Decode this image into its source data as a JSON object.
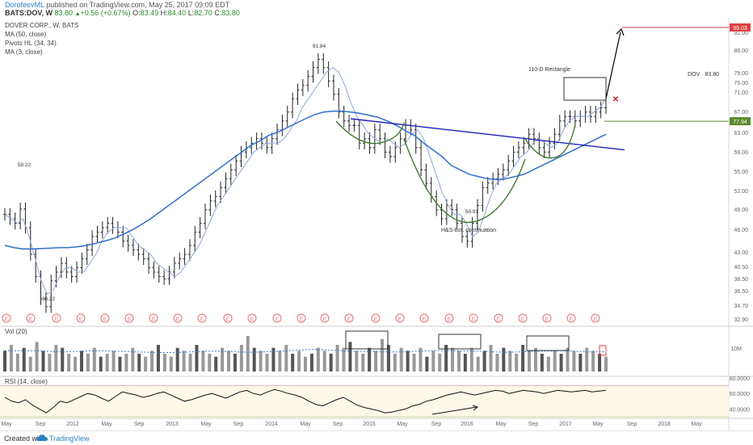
{
  "header": {
    "publisher": "DorofeevML",
    "published_text": " published on TradingView.com, May 25, 2017 09:09 EDT",
    "ticker": "BATS:DOV, W",
    "last": "83.80",
    "arrow": "▲",
    "change": "+0.56 (+0.67%)",
    "ohlc": [
      {
        "label": "O:",
        "value": "83.49"
      },
      {
        "label": "H:",
        "value": "84.40"
      },
      {
        "label": "L:",
        "value": "82.70"
      },
      {
        "label": "C:",
        "value": "83.80"
      }
    ]
  },
  "legend": [
    "DOVER CORP., W, BATS",
    "MA (50, close)",
    "Pivots HL (34, 34)",
    "MA (3, close)"
  ],
  "price_tag": "DOV · 83.80",
  "colors": {
    "price": "#222222",
    "ma50": "#2f6fd0",
    "ma3": "#8fa8d8",
    "neckline": "#2020b8",
    "pattern": "#3d7a2d",
    "target": "#e04040",
    "support": "#5a8a2a",
    "rsi_band": "#fff8e6",
    "volume_up": "#999999",
    "volume_down": "#555555",
    "volume_ma": "#3a78c8",
    "earnings": "#e07070"
  },
  "chart_data": [
    {
      "type": "candlestick",
      "title": "DOVER CORP., W, BATS",
      "x_ticks": [
        "May",
        "Sep",
        "2012",
        "May",
        "Sep",
        "2013",
        "May",
        "Sep",
        "2014",
        "May",
        "Sep",
        "2015",
        "May",
        "Sep",
        "2016",
        "May",
        "Sep",
        "2017",
        "May",
        "Sep",
        "2018",
        "May"
      ],
      "y_ticks": [
        92.0,
        88.0,
        79.0,
        75.0,
        71.0,
        67.0,
        63.0,
        59.0,
        55.0,
        52.0,
        49.0,
        46.0,
        43.0,
        40.5,
        38.5,
        36.5,
        34.7,
        32.9
      ],
      "ylim": [
        32.9,
        99.03
      ],
      "series": [
        {
          "name": "DOVER CORP.",
          "values": [
            57,
            56,
            55,
            58.2,
            54,
            48,
            43,
            38,
            36.22,
            42,
            44,
            46,
            44,
            43,
            45,
            47,
            49,
            52,
            53,
            54,
            55,
            54,
            53,
            51,
            50,
            49,
            48,
            47,
            45,
            44,
            43,
            42.5,
            44,
            46,
            47,
            48,
            50,
            53,
            55,
            58,
            60,
            61,
            63,
            65,
            67,
            69,
            71,
            72,
            73,
            74,
            73,
            72,
            74,
            76,
            78,
            80,
            83,
            85,
            86,
            88,
            90,
            91.84,
            90,
            87,
            84,
            80,
            78,
            77,
            77,
            73,
            74,
            72,
            76,
            74,
            71,
            70,
            72,
            74,
            77,
            76,
            72,
            67,
            64,
            61,
            58,
            56,
            59,
            58,
            55,
            52,
            50.91,
            55,
            59,
            63,
            64,
            65,
            66,
            67,
            69,
            71,
            72,
            73,
            75,
            74,
            72,
            71,
            73,
            75,
            78,
            79,
            79,
            78,
            79,
            80,
            79,
            80,
            81,
            83.8
          ]
        },
        {
          "name": "MA (50, close)",
          "values": [
            50,
            49.5,
            49.2,
            49.2,
            49.3,
            49.4,
            49.5,
            49.5,
            49.7,
            50,
            50.5,
            51,
            51.6,
            52.5,
            53.5,
            54.7,
            56,
            57.5,
            59,
            60.5,
            62,
            63.5,
            65,
            66.5,
            68,
            69.5,
            71,
            72.5,
            73.5,
            74.8,
            75.5,
            76.5,
            77.5,
            78.5,
            79.4,
            80,
            80.2,
            80.2,
            80,
            79.7,
            79.3,
            78.8,
            78,
            77,
            75.8,
            74.7,
            73,
            71.5,
            70,
            68,
            67,
            66,
            65.5,
            65,
            64.8,
            65,
            65.5,
            66,
            67,
            68,
            69,
            70,
            71,
            72,
            73,
            74,
            75
          ]
        },
        {
          "name": "MA (3, close)",
          "values": [
            57,
            56,
            55,
            56,
            52,
            47,
            42,
            39,
            40,
            43,
            45,
            45,
            44,
            44,
            46,
            48,
            51,
            53,
            54,
            54,
            54,
            52,
            50,
            49,
            48,
            46,
            45,
            44,
            43,
            44,
            46,
            48,
            50,
            53,
            56,
            59,
            61,
            63,
            65,
            67,
            69,
            71,
            72,
            73,
            73,
            73,
            74,
            76,
            78,
            81,
            83,
            85,
            87,
            89,
            90,
            89,
            86,
            82,
            79,
            77,
            75,
            74,
            73,
            74,
            73,
            72,
            73,
            75,
            76,
            74,
            70,
            66,
            62,
            59,
            57,
            57,
            55,
            52,
            53,
            57,
            61,
            64,
            65,
            66,
            68,
            70,
            71,
            73,
            74,
            73,
            72,
            73,
            76,
            78,
            79,
            79,
            79,
            80,
            81,
            83
          ]
        }
      ],
      "annotations": [
        "58.22",
        "91.84",
        "36.22",
        "50.91",
        "110-D Rectangle",
        "H&S-bot. continuation"
      ],
      "target_price": "99.03",
      "support_price": "77.94",
      "price_label": "DOV · 83.80",
      "grid": false
    },
    {
      "type": "bar",
      "title": "Vol (20)",
      "y_ticks": [
        "10M"
      ],
      "values": [
        7,
        9,
        6,
        8,
        5,
        10,
        7,
        6,
        9,
        8,
        6,
        5,
        7,
        6,
        8,
        5,
        6,
        7,
        5,
        6,
        8,
        6,
        5,
        7,
        9,
        6,
        5,
        8,
        7,
        6,
        9,
        7,
        6,
        5,
        8,
        7,
        6,
        9,
        12,
        8,
        7,
        6,
        8,
        7,
        9,
        6,
        7,
        5,
        6,
        8,
        7,
        6,
        9,
        8,
        10,
        7,
        6,
        8,
        7,
        11,
        9,
        6,
        8,
        7,
        6,
        8,
        5,
        7,
        6,
        9,
        8,
        7,
        6,
        8,
        5,
        7,
        9,
        6,
        8,
        7,
        6,
        9,
        7,
        8,
        6,
        5,
        7,
        6,
        8,
        7,
        6,
        8,
        7,
        6,
        5
      ],
      "ma_values": [
        7,
        7,
        7,
        6.8,
        6.6,
        6.8,
        7,
        6.9,
        6.8,
        6.6,
        6.5,
        6.4,
        6.5,
        6.7,
        6.9,
        6.8,
        6.6,
        6.5,
        6.7,
        6.9,
        7.2,
        7.5,
        7.3,
        7,
        6.8,
        6.7,
        6.6,
        6.6,
        6.8,
        7,
        7.1,
        7,
        6.9,
        6.7,
        6.5,
        6.6,
        6.8,
        6.9,
        7,
        6.8,
        6.6,
        6.7
      ]
    },
    {
      "type": "line",
      "title": "RSI (14, close)",
      "y_ticks": [
        "80.0000",
        "60.0000",
        "40.0000"
      ],
      "ylim": [
        30,
        80
      ],
      "values": [
        55,
        50,
        48,
        52,
        45,
        40,
        35,
        42,
        50,
        48,
        52,
        56,
        60,
        58,
        54,
        50,
        56,
        62,
        60,
        58,
        55,
        57,
        60,
        62,
        58,
        54,
        50,
        52,
        55,
        58,
        60,
        57,
        54,
        58,
        62,
        64,
        60,
        58,
        62,
        65,
        63,
        60,
        58,
        55,
        50,
        46,
        44,
        48,
        52,
        55,
        50,
        45,
        42,
        40,
        38,
        35,
        36,
        38,
        40,
        44,
        46,
        50,
        52,
        55,
        58,
        60,
        62,
        60,
        58,
        60,
        62,
        64,
        63,
        60,
        62,
        64,
        63,
        62,
        60,
        62,
        64,
        63,
        62,
        63,
        64,
        62,
        63,
        64
      ]
    }
  ],
  "footer": {
    "created_with": "Created with",
    "brand": "TradingView"
  }
}
